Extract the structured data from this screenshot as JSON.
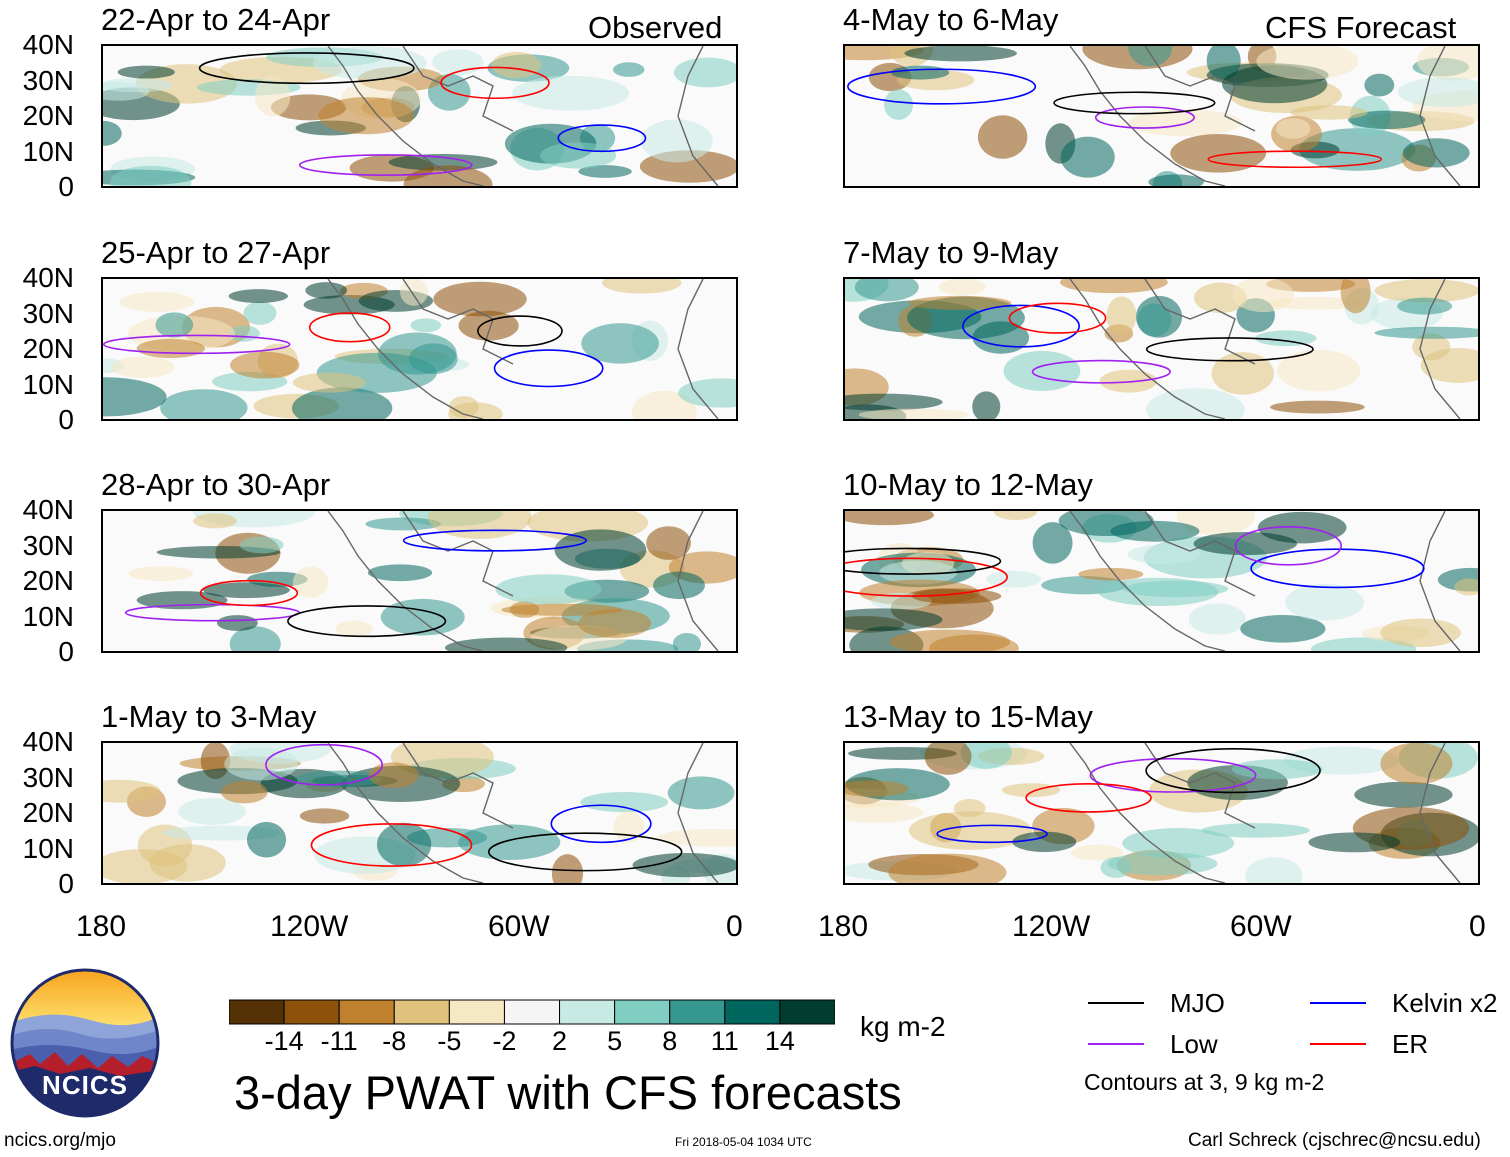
{
  "header": {
    "left_tag": "Observed",
    "right_tag": "CFS Forecast"
  },
  "panels": {
    "observed": [
      {
        "title": "22-Apr to 24-Apr"
      },
      {
        "title": "25-Apr to 27-Apr"
      },
      {
        "title": "28-Apr to 30-Apr"
      },
      {
        "title": "1-May to 3-May"
      }
    ],
    "forecast": [
      {
        "title": "4-May to 6-May"
      },
      {
        "title": "7-May to 9-May"
      },
      {
        "title": "10-May to 12-May"
      },
      {
        "title": "13-May to 15-May"
      }
    ]
  },
  "axes": {
    "lat_ticks": [
      "40N",
      "30N",
      "20N",
      "10N",
      "0"
    ],
    "lon_ticks": [
      "180",
      "120W",
      "60W",
      "0"
    ]
  },
  "colorbar": {
    "tick_labels": [
      "-14",
      "-11",
      "-8",
      "-5",
      "-2",
      "2",
      "5",
      "8",
      "11",
      "14"
    ],
    "colors": [
      "#543005",
      "#8c510a",
      "#bf812d",
      "#dfc27d",
      "#f6e8c3",
      "#f5f5f5",
      "#c7eae5",
      "#80cdc1",
      "#35978f",
      "#01665e",
      "#003c30"
    ],
    "units": "kg m-2"
  },
  "legend": {
    "items": [
      {
        "label": "MJO",
        "color": "#000000"
      },
      {
        "label": "Kelvin x2",
        "color": "#0000ff"
      },
      {
        "label": "Low",
        "color": "#a020f0"
      },
      {
        "label": "ER",
        "color": "#ff0000"
      }
    ],
    "note": "Contours at 3, 9 kg m-2"
  },
  "footer": {
    "main_title": "3-day PWAT with CFS forecasts",
    "logo_text": "NCICS",
    "url": "ncics.org/mjo",
    "timestamp": "Fri 2018-05-04 1034 UTC",
    "credit": "Carl Schreck (cjschrec@ncsu.edu)"
  }
}
